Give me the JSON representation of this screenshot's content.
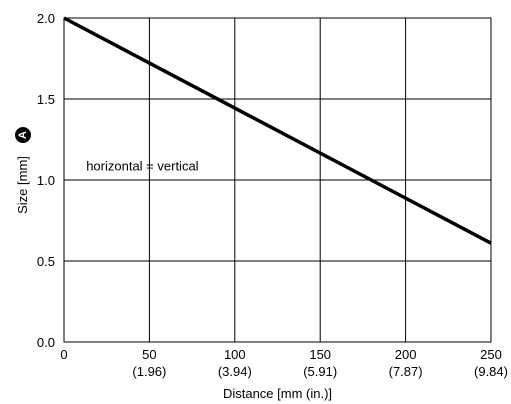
{
  "chart_data": {
    "type": "line",
    "title": "",
    "xlabel": "Distance [mm (in.)]",
    "ylabel": "Size [mm]",
    "ylabel_marker": "A",
    "xlim": [
      0,
      250
    ],
    "ylim": [
      0,
      2
    ],
    "grid": true,
    "x_ticks": [
      {
        "value": 0,
        "label": "0",
        "sublabel": ""
      },
      {
        "value": 50,
        "label": "50",
        "sublabel": "(1.96)"
      },
      {
        "value": 100,
        "label": "100",
        "sublabel": "(3.94)"
      },
      {
        "value": 150,
        "label": "150",
        "sublabel": "(5.91)"
      },
      {
        "value": 200,
        "label": "200",
        "sublabel": "(7.87)"
      },
      {
        "value": 250,
        "label": "250",
        "sublabel": "(9.84)"
      }
    ],
    "y_ticks": [
      {
        "value": 0,
        "label": "0.0"
      },
      {
        "value": 0.5,
        "label": "0.5"
      },
      {
        "value": 1,
        "label": "1.0"
      },
      {
        "value": 1.5,
        "label": "1.5"
      },
      {
        "value": 2,
        "label": "2.0"
      }
    ],
    "series": [
      {
        "x": [
          0,
          250
        ],
        "y": [
          2.0,
          0.61
        ],
        "color": "#000000"
      }
    ],
    "annotation": {
      "text": "horizontal = vertical",
      "x": 13,
      "y": 1.09
    }
  }
}
